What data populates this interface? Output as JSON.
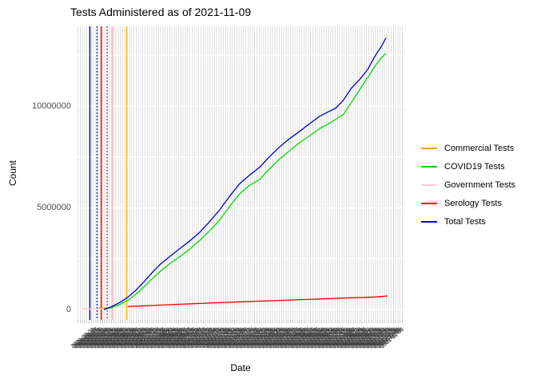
{
  "title": "Tests Administered as of 2021-11-09",
  "y_axis": {
    "label": "Count",
    "ticks": [
      {
        "value": 0,
        "label": "0"
      },
      {
        "value": 5000000,
        "label": "5000000"
      },
      {
        "value": 10000000,
        "label": "10000000"
      }
    ]
  },
  "x_axis": {
    "label": "Date",
    "tick_labels_note": "hundreds of overlapping rotated daily date labels forming an unreadable smear",
    "band_dates": {
      "start": "2020-03-09",
      "end": "2021-11-09",
      "step_days": 2,
      "format": "YYYY-MM-DD"
    }
  },
  "legend": {
    "position": "right",
    "items": [
      {
        "label": "Commercial Tests",
        "color": "#EFA100"
      },
      {
        "label": "COVID19 Tests",
        "color": "#00D900"
      },
      {
        "label": "Government Tests",
        "color": "#FFC8D0"
      },
      {
        "label": "Serology Tests",
        "color": "#FF0000"
      },
      {
        "label": "Total Tests",
        "color": "#0000CC"
      }
    ]
  },
  "chart_data": {
    "type": "line",
    "title": "Tests Administered as of 2021-11-09",
    "xlabel": "Date",
    "ylabel": "Count",
    "x_note": "x is fraction of panel width (0=left edge, 1=right edge); date axis ends 2021-11-09, tick labels unreadable",
    "ylim": [
      -510000,
      13920000
    ],
    "grid": "dense light-gray vertical date gridlines on white; white horizontal gridlines every 2500000",
    "y_gridlines": [
      0,
      2500000,
      5000000,
      7500000,
      10000000,
      12500000
    ],
    "series": [
      {
        "name": "Government Tests",
        "color": "#FFC8D0",
        "points": [
          [
            0.015,
            30000
          ],
          [
            0.074,
            35000
          ]
        ]
      },
      {
        "name": "Commercial Tests",
        "color": "#EFA100",
        "points": [
          [
            0.066,
            80000
          ],
          [
            0.108,
            85000
          ]
        ]
      },
      {
        "name": "COVID19 Tests",
        "color": "#00D900",
        "points": [
          [
            0.081,
            0
          ],
          [
            0.105,
            100000
          ],
          [
            0.13,
            250000
          ],
          [
            0.154,
            450000
          ],
          [
            0.179,
            750000
          ],
          [
            0.203,
            1100000
          ],
          [
            0.228,
            1500000
          ],
          [
            0.252,
            1850000
          ],
          [
            0.282,
            2250000
          ],
          [
            0.314,
            2600000
          ],
          [
            0.346,
            3000000
          ],
          [
            0.375,
            3400000
          ],
          [
            0.404,
            3850000
          ],
          [
            0.436,
            4400000
          ],
          [
            0.468,
            5100000
          ],
          [
            0.498,
            5700000
          ],
          [
            0.527,
            6100000
          ],
          [
            0.559,
            6400000
          ],
          [
            0.588,
            6900000
          ],
          [
            0.62,
            7400000
          ],
          [
            0.65,
            7800000
          ],
          [
            0.681,
            8200000
          ],
          [
            0.713,
            8550000
          ],
          [
            0.743,
            8900000
          ],
          [
            0.767,
            9100000
          ],
          [
            0.792,
            9350000
          ],
          [
            0.816,
            9600000
          ],
          [
            0.841,
            10200000
          ],
          [
            0.865,
            10800000
          ],
          [
            0.89,
            11400000
          ],
          [
            0.914,
            12000000
          ],
          [
            0.931,
            12350000
          ],
          [
            0.946,
            12600000
          ]
        ]
      },
      {
        "name": "Serology Tests",
        "color": "#FF0000",
        "points": [
          [
            0.154,
            150000
          ],
          [
            0.252,
            220000
          ],
          [
            0.375,
            300000
          ],
          [
            0.498,
            380000
          ],
          [
            0.62,
            450000
          ],
          [
            0.743,
            520000
          ],
          [
            0.841,
            580000
          ],
          [
            0.914,
            620000
          ],
          [
            0.951,
            670000
          ]
        ]
      },
      {
        "name": "Total Tests",
        "color": "#0000CC",
        "points": [
          [
            0.081,
            0
          ],
          [
            0.105,
            150000
          ],
          [
            0.13,
            350000
          ],
          [
            0.154,
            600000
          ],
          [
            0.179,
            950000
          ],
          [
            0.203,
            1350000
          ],
          [
            0.228,
            1800000
          ],
          [
            0.252,
            2200000
          ],
          [
            0.282,
            2600000
          ],
          [
            0.314,
            3000000
          ],
          [
            0.346,
            3400000
          ],
          [
            0.375,
            3800000
          ],
          [
            0.404,
            4300000
          ],
          [
            0.436,
            4900000
          ],
          [
            0.468,
            5600000
          ],
          [
            0.498,
            6200000
          ],
          [
            0.527,
            6600000
          ],
          [
            0.559,
            7000000
          ],
          [
            0.588,
            7500000
          ],
          [
            0.62,
            8000000
          ],
          [
            0.65,
            8400000
          ],
          [
            0.681,
            8750000
          ],
          [
            0.713,
            9150000
          ],
          [
            0.743,
            9500000
          ],
          [
            0.767,
            9700000
          ],
          [
            0.792,
            9900000
          ],
          [
            0.816,
            10300000
          ],
          [
            0.841,
            10900000
          ],
          [
            0.865,
            11300000
          ],
          [
            0.89,
            11800000
          ],
          [
            0.914,
            12500000
          ],
          [
            0.931,
            12900000
          ],
          [
            0.946,
            13350000
          ]
        ]
      }
    ],
    "vlines": [
      {
        "color": "#0000CC",
        "style": "solid",
        "x": 0.038
      },
      {
        "color": "#0000CC",
        "style": "dotted",
        "x": 0.06
      },
      {
        "color": "#FF0000",
        "style": "solid",
        "x": 0.073
      },
      {
        "color": "#FF0000",
        "style": "dotted",
        "x": 0.091
      },
      {
        "color": "#FFB3C0",
        "style": "solid",
        "x": 0.107
      },
      {
        "color": "#FFD9E0",
        "style": "dotted",
        "x": 0.132
      },
      {
        "color": "#EDB400",
        "style": "solid",
        "x": 0.151
      }
    ]
  }
}
